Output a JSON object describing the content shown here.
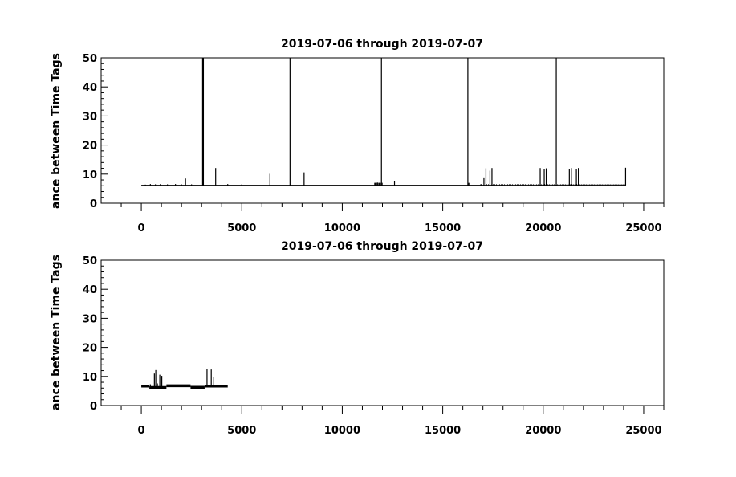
{
  "chart_data": [
    {
      "type": "line",
      "title": "2019-07-06 through 2019-07-07",
      "xlabel": "",
      "ylabel": "ance between Time Tags",
      "xlim": [
        -2000,
        26000
      ],
      "ylim": [
        0,
        50
      ],
      "xticks": [
        0,
        5000,
        10000,
        15000,
        20000,
        25000
      ],
      "yticks": [
        0,
        10,
        20,
        30,
        40,
        50
      ],
      "xtick_labels": [
        "0",
        "5000",
        "10000",
        "15000",
        "20000",
        "25000"
      ],
      "ytick_labels": [
        "0",
        "10",
        "20",
        "30",
        "40",
        "50"
      ],
      "grid": false,
      "baseline": {
        "x_start": 0,
        "x_end": 24100,
        "y": 6.1
      },
      "spikes": [
        {
          "x": 200,
          "y": 6.4
        },
        {
          "x": 450,
          "y": 6.6
        },
        {
          "x": 700,
          "y": 6.5
        },
        {
          "x": 950,
          "y": 6.6
        },
        {
          "x": 1300,
          "y": 6.5
        },
        {
          "x": 1700,
          "y": 6.6
        },
        {
          "x": 2000,
          "y": 6.5
        },
        {
          "x": 2200,
          "y": 8.5
        },
        {
          "x": 2500,
          "y": 6.5
        },
        {
          "x": 3050,
          "y": 50
        },
        {
          "x": 3070,
          "y": 50
        },
        {
          "x": 3090,
          "y": 50
        },
        {
          "x": 3700,
          "y": 12.1
        },
        {
          "x": 4300,
          "y": 6.6
        },
        {
          "x": 5000,
          "y": 6.5
        },
        {
          "x": 6400,
          "y": 10.1
        },
        {
          "x": 7400,
          "y": 50
        },
        {
          "x": 8100,
          "y": 10.6
        },
        {
          "x": 11650,
          "y": 7.0
        },
        {
          "x": 11750,
          "y": 7.1
        },
        {
          "x": 11850,
          "y": 7.0
        },
        {
          "x": 11950,
          "y": 50
        },
        {
          "x": 12600,
          "y": 7.6
        },
        {
          "x": 16250,
          "y": 50
        },
        {
          "x": 16300,
          "y": 7.0
        },
        {
          "x": 16900,
          "y": 6.6
        },
        {
          "x": 17050,
          "y": 8.6
        },
        {
          "x": 17150,
          "y": 12.0
        },
        {
          "x": 17350,
          "y": 11.2
        },
        {
          "x": 17450,
          "y": 12.1
        },
        {
          "x": 19850,
          "y": 12.1
        },
        {
          "x": 20050,
          "y": 11.8
        },
        {
          "x": 20150,
          "y": 12.0
        },
        {
          "x": 20650,
          "y": 50
        },
        {
          "x": 21300,
          "y": 11.8
        },
        {
          "x": 21400,
          "y": 12.1
        },
        {
          "x": 21650,
          "y": 11.8
        },
        {
          "x": 21750,
          "y": 12.1
        },
        {
          "x": 24100,
          "y": 12.2
        }
      ],
      "dense_bands": [
        {
          "x_start": 17200,
          "x_end": 24100,
          "y": 6.6,
          "step": 80
        },
        {
          "x_start": 11600,
          "x_end": 12000,
          "y": 7.0,
          "step": 40
        }
      ]
    },
    {
      "type": "line",
      "title": "2019-07-06 through 2019-07-07",
      "xlabel": "",
      "ylabel": "ance between Time Tags",
      "xlim": [
        -2000,
        26000
      ],
      "ylim": [
        0,
        50
      ],
      "xticks": [
        0,
        5000,
        10000,
        15000,
        20000,
        25000
      ],
      "yticks": [
        0,
        10,
        20,
        30,
        40,
        50
      ],
      "xtick_labels": [
        "0",
        "5000",
        "10000",
        "15000",
        "20000",
        "25000"
      ],
      "ytick_labels": [
        "0",
        "10",
        "20",
        "30",
        "40",
        "50"
      ],
      "grid": false,
      "segments": [
        {
          "x_start": 0,
          "x_end": 400,
          "y": 6.7
        },
        {
          "x_start": 400,
          "x_end": 1250,
          "y": 6.2
        },
        {
          "x_start": 1250,
          "x_end": 2450,
          "y": 6.8
        },
        {
          "x_start": 2450,
          "x_end": 3150,
          "y": 6.3
        },
        {
          "x_start": 3150,
          "x_end": 4300,
          "y": 6.7
        }
      ],
      "spikes": [
        {
          "x": 450,
          "y": 7.3
        },
        {
          "x": 650,
          "y": 11.0
        },
        {
          "x": 720,
          "y": 12.2
        },
        {
          "x": 800,
          "y": 7.6
        },
        {
          "x": 920,
          "y": 10.6
        },
        {
          "x": 1020,
          "y": 10.2
        },
        {
          "x": 3270,
          "y": 12.6
        },
        {
          "x": 3480,
          "y": 12.4
        },
        {
          "x": 3580,
          "y": 9.8
        }
      ]
    }
  ]
}
